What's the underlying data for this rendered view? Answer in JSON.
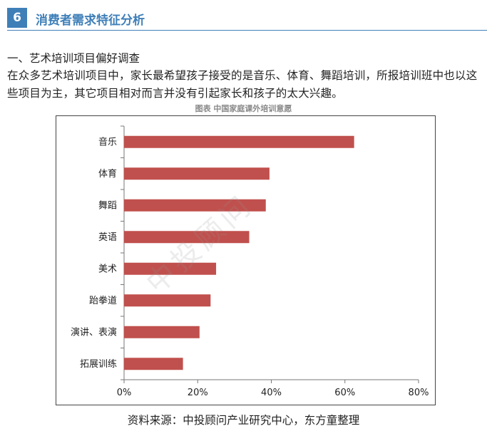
{
  "header": {
    "badge": "6",
    "title": "消费者需求特征分析"
  },
  "subheading": "一、艺术培训项目偏好调查",
  "paragraph": "在众多艺术培训项目中，家长最希望孩子接受的是音乐、体育、舞蹈培训，所报培训班中也以这些项目为主，其它项目相对而言并没有引起家长和孩子的太大兴趣。",
  "chart_caption": "图表  中国家庭课外培训意愿",
  "watermark": "中投顾问",
  "source": "资料来源：中投顾问产业研究中心，东方童整理",
  "colors": {
    "accent": "#3f7fb8",
    "bar": "#c0504d"
  },
  "chart_data": {
    "type": "bar",
    "orientation": "horizontal",
    "title": "图表  中国家庭课外培训意愿",
    "categories": [
      "音乐",
      "体育",
      "舞蹈",
      "英语",
      "美术",
      "跆拳道",
      "演讲、表演",
      "拓展训练"
    ],
    "values": [
      62.5,
      39.5,
      38.5,
      34.0,
      25.0,
      23.5,
      20.5,
      16.0
    ],
    "unit": "%",
    "xlim": [
      0,
      80
    ],
    "xticks": [
      0,
      20,
      40,
      60,
      80
    ],
    "xtick_labels": [
      "0%",
      "20%",
      "40%",
      "60%",
      "80%"
    ],
    "grid": false,
    "legend": "none"
  }
}
